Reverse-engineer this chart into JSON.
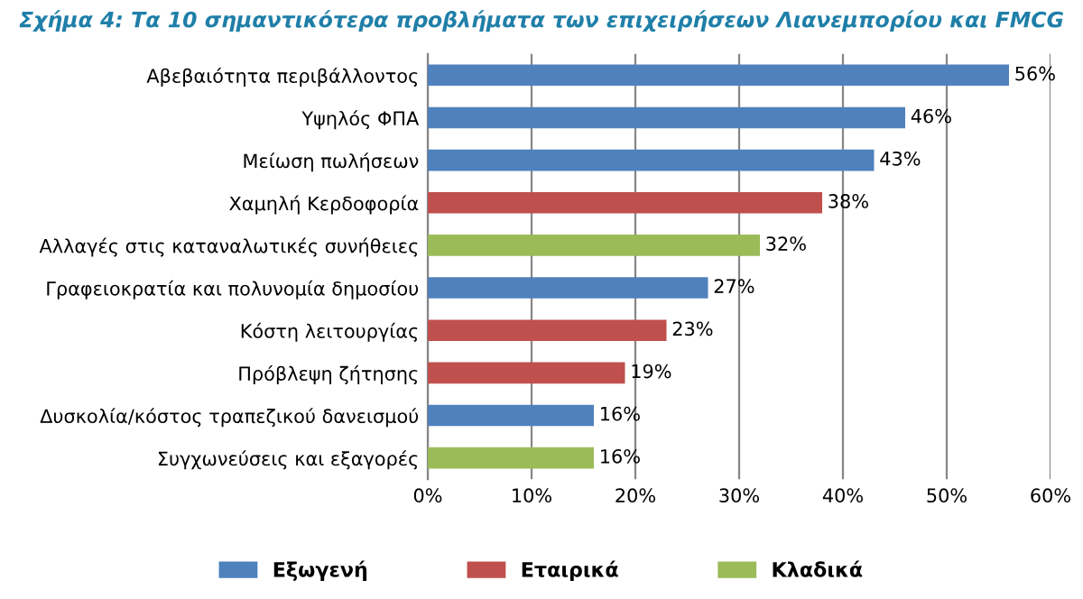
{
  "chart_data": {
    "type": "bar",
    "orientation": "horizontal",
    "stacked": true,
    "title": "Σχήμα 4: Τα 10 σημαντικότερα προβλήματα των επιχειρήσεων Λιανεμπορίου και FMCG",
    "categories": [
      "Αβεβαιότητα περιβάλλοντος",
      "Υψηλός ΦΠΑ",
      "Μείωση πωλήσεων",
      "Χαμηλή Κερδοφορία",
      "Αλλαγές στις καταναλωτικές συνήθειες",
      "Γραφειοκρατία και πολυνομία δημοσίου",
      "Κόστη λειτουργίας",
      "Πρόβλεψη ζήτησης",
      "Δυσκολία/κόστος τραπεζικού δανεισμού",
      "Συγχωνεύσεις και εξαγορές"
    ],
    "series": [
      {
        "name": "Εξωγενή",
        "color": "#4f81bd",
        "values": [
          56,
          46,
          43,
          null,
          null,
          27,
          null,
          null,
          16,
          null
        ],
        "value_labels": [
          "56%",
          "46%",
          "43%",
          null,
          null,
          "27%",
          null,
          null,
          "16%",
          null
        ]
      },
      {
        "name": "Εταιρικά",
        "color": "#c0504d",
        "values": [
          null,
          null,
          null,
          38,
          null,
          null,
          23,
          19,
          null,
          null
        ],
        "value_labels": [
          null,
          null,
          null,
          "38%",
          null,
          null,
          "23%",
          "19%",
          null,
          null
        ]
      },
      {
        "name": "Κλαδικά",
        "color": "#9bbb59",
        "values": [
          null,
          null,
          null,
          null,
          32,
          null,
          null,
          null,
          null,
          16
        ],
        "value_labels": [
          null,
          null,
          null,
          null,
          "32%",
          null,
          null,
          null,
          null,
          "16%"
        ]
      }
    ],
    "xlim": [
      0,
      60
    ],
    "xticks": [
      {
        "value": 0,
        "label": "0%"
      },
      {
        "value": 10,
        "label": "10%"
      },
      {
        "value": 20,
        "label": "20%"
      },
      {
        "value": 30,
        "label": "30%"
      },
      {
        "value": 40,
        "label": "40%"
      },
      {
        "value": 50,
        "label": "50%"
      },
      {
        "value": 60,
        "label": "60%"
      }
    ],
    "grid": "x",
    "legend": "bottom"
  }
}
